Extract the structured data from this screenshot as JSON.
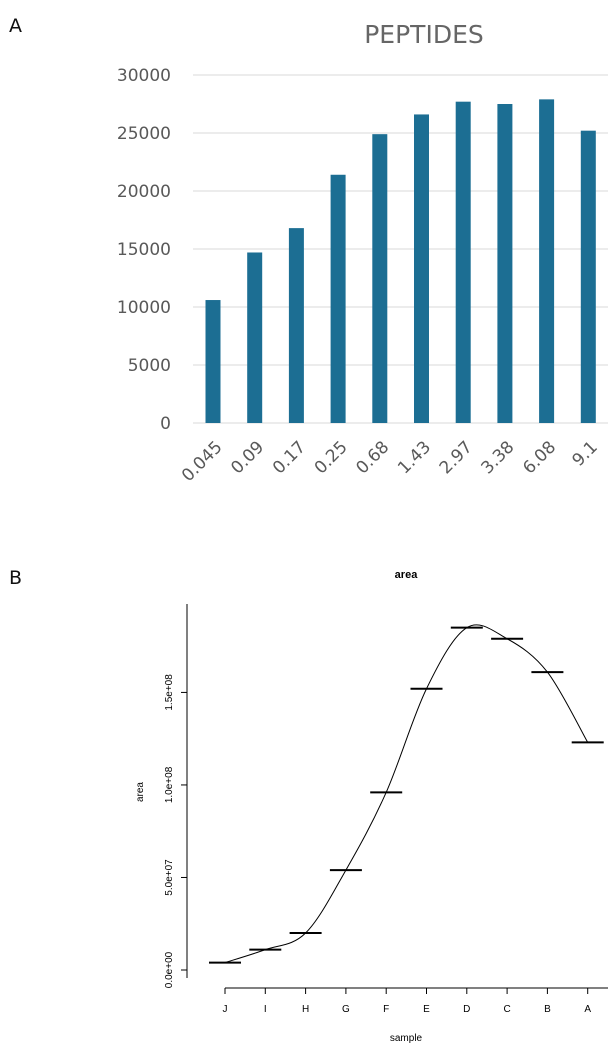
{
  "panels": {
    "a_label": "A",
    "b_label": "B"
  },
  "chart_data": [
    {
      "type": "bar",
      "title": "PEPTIDES",
      "xlabel": "",
      "ylabel": "",
      "categories": [
        "0.045",
        "0.09",
        "0.17",
        "0.25",
        "0.68",
        "1.43",
        "2.97",
        "3.38",
        "6.08",
        "9.1"
      ],
      "values": [
        10600,
        14700,
        16800,
        21400,
        24900,
        26600,
        27700,
        27500,
        27900,
        25200
      ],
      "ylim": [
        0,
        30000
      ],
      "yticks": [
        0,
        5000,
        10000,
        15000,
        20000,
        25000,
        30000
      ],
      "grid": true,
      "bar_color": "#1c6e93",
      "grid_color": "#d9d9d9"
    },
    {
      "type": "line",
      "title": "area",
      "xlabel": "sample",
      "ylabel": "area",
      "categories": [
        "J",
        "I",
        "H",
        "G",
        "F",
        "E",
        "D",
        "C",
        "B",
        "A"
      ],
      "values": [
        4000000,
        11000000,
        20000000,
        54000000,
        96000000,
        152000000,
        185000000,
        179000000,
        161000000,
        123000000
      ],
      "ylim": [
        0,
        190000000
      ],
      "ytick_values": [
        0,
        50000000,
        100000000,
        150000000
      ],
      "ytick_labels": [
        "0.0e+00",
        "5.0e+07",
        "1.0e+08",
        "1.5e+08"
      ],
      "markers": "horizontal-dash",
      "line_color": "#000000"
    }
  ]
}
